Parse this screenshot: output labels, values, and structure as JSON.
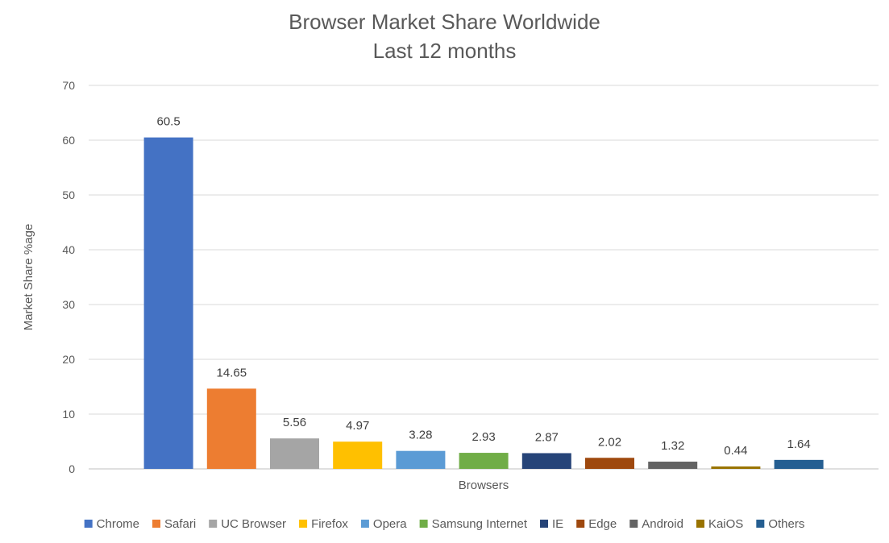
{
  "chart_data": {
    "type": "bar",
    "title": "Browser Market Share Worldwide",
    "subtitle": "Last 12 months",
    "xlabel": "Browsers",
    "ylabel": "Market Share %age",
    "ylim": [
      0,
      70
    ],
    "yticks": [
      0,
      10,
      20,
      30,
      40,
      50,
      60,
      70
    ],
    "grid": true,
    "legend_position": "bottom",
    "categories": [
      "Chrome",
      "Safari",
      "UC Browser",
      "Firefox",
      "Opera",
      "Samsung Internet",
      "IE",
      "Edge",
      "Android",
      "KaiOS",
      "Others"
    ],
    "values": [
      60.5,
      14.65,
      5.56,
      4.97,
      3.28,
      2.93,
      2.87,
      2.02,
      1.32,
      0.44,
      1.64
    ],
    "data_labels": [
      "60.5",
      "14.65",
      "5.56",
      "4.97",
      "3.28",
      "2.93",
      "2.87",
      "2.02",
      "1.32",
      "0.44",
      "1.64"
    ],
    "colors": [
      "#4472C4",
      "#ED7D31",
      "#A5A5A5",
      "#FFC000",
      "#5B9BD5",
      "#70AD47",
      "#264478",
      "#9E480E",
      "#636363",
      "#997300",
      "#255E91"
    ]
  }
}
